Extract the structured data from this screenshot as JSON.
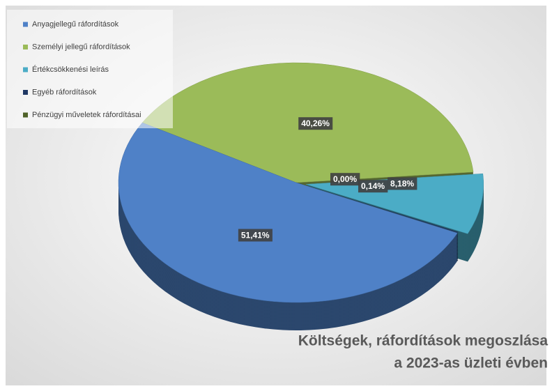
{
  "chart_data": {
    "type": "pie",
    "title": [
      "Költségek, ráfordítások megoszlása",
      "a 2023-as üzleti évben"
    ],
    "categories": [
      "Anyagjellegű ráfordítások",
      "Személyi jellegű ráfordítások",
      "Értékcsökkenési leírás",
      "Egyéb ráfordítások",
      "Pénzügyi műveletek ráfordításai"
    ],
    "values": [
      51.41,
      40.26,
      8.18,
      0.14,
      0.0
    ],
    "value_labels": [
      "51,41%",
      "40,26%",
      "8,18%",
      "0,14%",
      "0,00%"
    ],
    "colors": [
      "#4f81c7",
      "#9bbb59",
      "#4bacc6",
      "#1f3864",
      "#4f6228"
    ],
    "legend": "top-left"
  }
}
